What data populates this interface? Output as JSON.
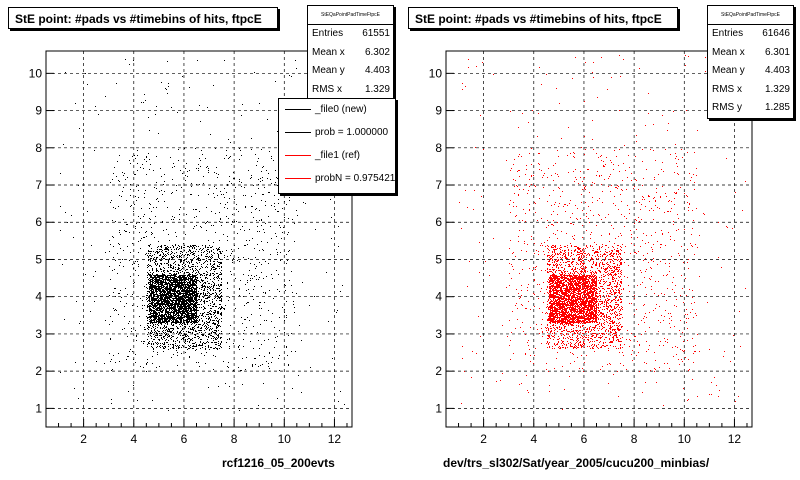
{
  "chart_data": [
    {
      "type": "scatter",
      "title": "StE point: #pads vs #timebins of hits, ftpcE",
      "xlabel": "rcf1216_05_200evts",
      "ylabel": "",
      "xlim": [
        0.5,
        12.7
      ],
      "ylim": [
        0.5,
        10.6
      ],
      "xticks": [
        2,
        4,
        6,
        8,
        10,
        12
      ],
      "yticks": [
        1,
        2,
        3,
        4,
        5,
        6,
        7,
        8,
        9,
        10
      ],
      "grid": true,
      "color": "#000000",
      "stats": {
        "header": "StEQaPointPadTimeFtpcE",
        "rows": [
          {
            "label": "Entries",
            "value": "61551"
          },
          {
            "label": "Mean x",
            "value": "6.302"
          },
          {
            "label": "Mean y",
            "value": "4.403"
          },
          {
            "label": "RMS x",
            "value": "1.329"
          }
        ]
      },
      "legend": {
        "placement": "right",
        "entries": [
          {
            "label": "_file0 (new)",
            "color": "#000000"
          },
          {
            "label": "prob = 1.000000",
            "color": "#000000"
          },
          {
            "label": "_file1 (ref)",
            "color": "#ff0000"
          },
          {
            "label": "probN = 0.975421",
            "color": "#ff0000"
          }
        ]
      },
      "point_density": [
        {
          "x": [
            4.6,
            6.5
          ],
          "y": [
            3.3,
            4.6
          ],
          "level": "dense"
        },
        {
          "x": [
            4.5,
            7.5
          ],
          "y": [
            2.6,
            5.4
          ],
          "level": "medium"
        },
        {
          "x": [
            3.0,
            10.5
          ],
          "y": [
            2.0,
            8.0
          ],
          "level": "sparse"
        },
        {
          "x": [
            1.0,
            12.5
          ],
          "y": [
            0.9,
            10.5
          ],
          "level": "very sparse"
        }
      ]
    },
    {
      "type": "scatter",
      "title": "StE point: #pads vs #timebins of hits, ftpcE",
      "xlabel": "dev/trs_sl302/Sat/year_2005/cucu200_minbias/",
      "ylabel": "",
      "xlim": [
        0.5,
        12.7
      ],
      "ylim": [
        0.5,
        10.6
      ],
      "xticks": [
        2,
        4,
        6,
        8,
        10,
        12
      ],
      "yticks": [
        1,
        2,
        3,
        4,
        5,
        6,
        7,
        8,
        9,
        10
      ],
      "grid": true,
      "color": "#ff0000",
      "stats": {
        "header": "StEQaPointPadTimeFtpcE",
        "rows": [
          {
            "label": "Entries",
            "value": "61646"
          },
          {
            "label": "Mean x",
            "value": "6.301"
          },
          {
            "label": "Mean y",
            "value": "4.403"
          },
          {
            "label": "RMS x",
            "value": "1.329"
          },
          {
            "label": "RMS y",
            "value": "1.285"
          }
        ]
      },
      "point_density": [
        {
          "x": [
            4.6,
            6.5
          ],
          "y": [
            3.3,
            4.6
          ],
          "level": "dense"
        },
        {
          "x": [
            4.5,
            7.5
          ],
          "y": [
            2.6,
            5.4
          ],
          "level": "medium"
        },
        {
          "x": [
            3.0,
            10.5
          ],
          "y": [
            2.0,
            8.0
          ],
          "level": "sparse"
        },
        {
          "x": [
            1.0,
            12.5
          ],
          "y": [
            0.9,
            10.5
          ],
          "level": "very sparse"
        }
      ]
    }
  ]
}
